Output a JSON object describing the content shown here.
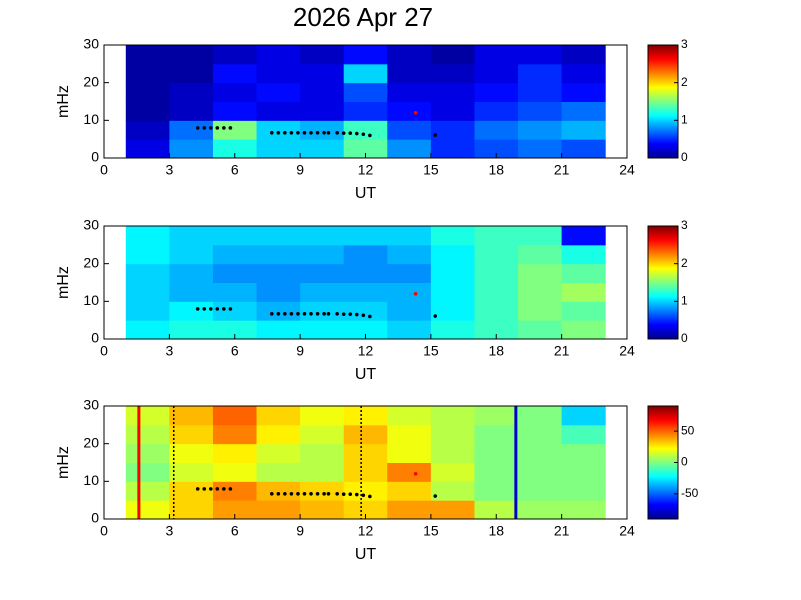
{
  "title": "2026 Apr 27",
  "chart_data": [
    {
      "type": "heatmap",
      "ylabel": "mHz",
      "xlabel": "UT",
      "xlim": [
        0,
        24
      ],
      "xticks": [
        0,
        3,
        6,
        9,
        12,
        15,
        18,
        21,
        24
      ],
      "ylim": [
        0,
        30
      ],
      "yticks": [
        0,
        10,
        20,
        30
      ],
      "x": [
        2,
        4,
        6,
        8,
        10,
        12,
        14,
        16,
        18,
        20,
        22
      ],
      "y": [
        2.5,
        7.5,
        12.5,
        17.5,
        22.5,
        27.5
      ],
      "z": [
        [
          0.3,
          0.8,
          1.2,
          1.0,
          1.0,
          1.4,
          0.8,
          0.5,
          0.6,
          0.7,
          0.6
        ],
        [
          0.2,
          0.7,
          1.5,
          1.0,
          0.9,
          1.3,
          0.6,
          0.5,
          0.7,
          0.8,
          0.9
        ],
        [
          0.1,
          0.2,
          0.4,
          0.3,
          0.3,
          0.5,
          0.4,
          0.3,
          0.5,
          0.6,
          0.7
        ],
        [
          0.1,
          0.2,
          0.3,
          0.4,
          0.3,
          0.6,
          0.3,
          0.3,
          0.4,
          0.5,
          0.4
        ],
        [
          0.1,
          0.1,
          0.4,
          0.3,
          0.3,
          1.0,
          0.2,
          0.2,
          0.3,
          0.5,
          0.3
        ],
        [
          0.1,
          0.1,
          0.2,
          0.3,
          0.2,
          0.4,
          0.2,
          0.1,
          0.3,
          0.3,
          0.2
        ]
      ],
      "clim": [
        0,
        3
      ],
      "cticks": [
        0,
        1,
        2,
        3
      ],
      "series": [
        {
          "color": "#000000",
          "x": [
            4.3,
            4.6,
            4.9,
            5.2,
            5.5,
            5.8,
            7.7,
            8.0,
            8.3,
            8.6,
            8.9,
            9.2,
            9.5,
            9.8,
            10.1,
            10.3,
            10.7,
            11.0,
            11.3,
            11.6,
            11.9,
            12.2,
            15.2
          ],
          "y": [
            8,
            8,
            8,
            8,
            8,
            8,
            6.7,
            6.7,
            6.7,
            6.7,
            6.7,
            6.7,
            6.7,
            6.7,
            6.7,
            6.7,
            6.7,
            6.6,
            6.6,
            6.5,
            6.3,
            6.0,
            6.1
          ]
        },
        {
          "color": "#ff0000",
          "x": [
            14.3
          ],
          "y": [
            12
          ]
        }
      ]
    },
    {
      "type": "heatmap",
      "ylabel": "mHz",
      "xlabel": "UT",
      "xlim": [
        0,
        24
      ],
      "xticks": [
        0,
        3,
        6,
        9,
        12,
        15,
        18,
        21,
        24
      ],
      "ylim": [
        0,
        30
      ],
      "yticks": [
        0,
        10,
        20,
        30
      ],
      "x": [
        2,
        4,
        6,
        8,
        10,
        12,
        14,
        16,
        18,
        20,
        22
      ],
      "y": [
        2.5,
        7.5,
        12.5,
        17.5,
        22.5,
        27.5
      ],
      "z": [
        [
          1.1,
          1.2,
          1.2,
          1.1,
          1.1,
          1.1,
          1.0,
          1.2,
          1.3,
          1.4,
          1.5
        ],
        [
          1.0,
          1.1,
          1.0,
          0.9,
          1.0,
          1.0,
          0.9,
          1.1,
          1.3,
          1.5,
          1.4
        ],
        [
          1.0,
          0.9,
          0.9,
          0.8,
          0.9,
          0.9,
          0.9,
          1.1,
          1.3,
          1.5,
          1.6
        ],
        [
          1.0,
          0.9,
          0.8,
          0.8,
          0.8,
          0.8,
          0.8,
          1.1,
          1.3,
          1.5,
          1.4
        ],
        [
          1.1,
          1.0,
          0.9,
          0.9,
          0.9,
          0.8,
          0.9,
          1.1,
          1.3,
          1.4,
          1.2
        ],
        [
          1.1,
          1.0,
          1.0,
          1.0,
          1.0,
          1.0,
          1.0,
          1.2,
          1.3,
          1.3,
          0.4
        ]
      ],
      "clim": [
        0,
        3
      ],
      "cticks": [
        0,
        1,
        2,
        3
      ],
      "series": [
        {
          "color": "#000000",
          "x": [
            4.3,
            4.6,
            4.9,
            5.2,
            5.5,
            5.8,
            7.7,
            8.0,
            8.3,
            8.6,
            8.9,
            9.2,
            9.5,
            9.8,
            10.1,
            10.3,
            10.7,
            11.0,
            11.3,
            11.6,
            11.9,
            12.2,
            15.2
          ],
          "y": [
            8,
            8,
            8,
            8,
            8,
            8,
            6.7,
            6.7,
            6.7,
            6.7,
            6.7,
            6.7,
            6.7,
            6.7,
            6.7,
            6.7,
            6.7,
            6.6,
            6.6,
            6.5,
            6.3,
            6.0,
            6.1
          ]
        },
        {
          "color": "#ff0000",
          "x": [
            14.3
          ],
          "y": [
            12
          ]
        }
      ]
    },
    {
      "type": "heatmap",
      "ylabel": "mHz",
      "xlabel": "UT",
      "xlim": [
        0,
        24
      ],
      "xticks": [
        0,
        3,
        6,
        9,
        12,
        15,
        18,
        21,
        24
      ],
      "ylim": [
        0,
        30
      ],
      "yticks": [
        0,
        10,
        20,
        30
      ],
      "x": [
        2,
        4,
        6,
        8,
        10,
        12,
        14,
        16,
        18,
        20,
        22
      ],
      "y": [
        2.5,
        7.5,
        12.5,
        17.5,
        22.5,
        27.5
      ],
      "z": [
        [
          20,
          30,
          40,
          40,
          35,
          30,
          40,
          40,
          10,
          5,
          5
        ],
        [
          10,
          30,
          45,
          35,
          30,
          25,
          30,
          10,
          0,
          0,
          0
        ],
        [
          0,
          15,
          20,
          10,
          10,
          30,
          45,
          15,
          0,
          0,
          0
        ],
        [
          5,
          20,
          25,
          15,
          10,
          30,
          20,
          10,
          0,
          0,
          0
        ],
        [
          10,
          30,
          45,
          25,
          15,
          35,
          20,
          10,
          0,
          0,
          -10
        ],
        [
          15,
          35,
          50,
          30,
          20,
          25,
          15,
          10,
          5,
          0,
          -30
        ]
      ],
      "clim": [
        -90,
        90
      ],
      "cticks": [
        -50,
        0,
        50
      ],
      "series": [
        {
          "color": "#000000",
          "x": [
            4.3,
            4.6,
            4.9,
            5.2,
            5.5,
            5.8,
            7.7,
            8.0,
            8.3,
            8.6,
            8.9,
            9.2,
            9.5,
            9.8,
            10.1,
            10.3,
            10.7,
            11.0,
            11.3,
            11.6,
            11.9,
            12.2,
            15.2
          ],
          "y": [
            8,
            8,
            8,
            8,
            8,
            8,
            6.7,
            6.7,
            6.7,
            6.7,
            6.7,
            6.7,
            6.7,
            6.7,
            6.7,
            6.7,
            6.7,
            6.6,
            6.6,
            6.5,
            6.3,
            6.0,
            6.1
          ]
        },
        {
          "color": "#ff0000",
          "x": [
            14.3
          ],
          "y": [
            12
          ]
        }
      ],
      "vlines": [
        {
          "x": 1.6,
          "color": "#ff0000",
          "style": "solid"
        },
        {
          "x": 3.2,
          "color": "#000000",
          "style": "dotted"
        },
        {
          "x": 11.8,
          "color": "#000000",
          "style": "dotted"
        },
        {
          "x": 18.9,
          "color": "#0000cc",
          "style": "solid"
        }
      ]
    }
  ]
}
